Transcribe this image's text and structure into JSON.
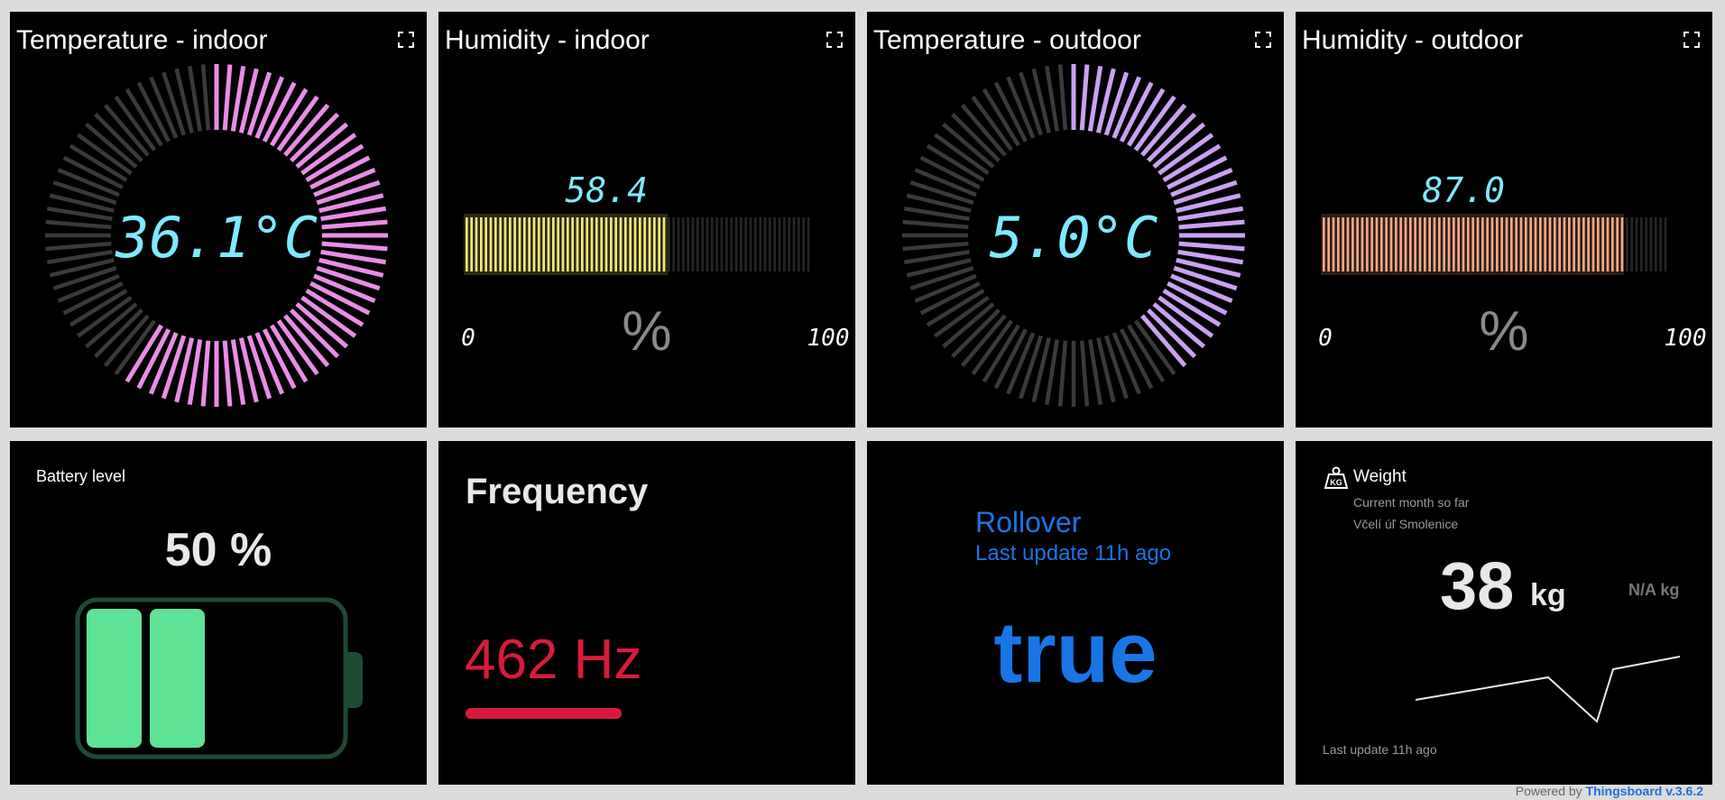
{
  "widgets": {
    "temp_indoor": {
      "title": "Temperature - indoor",
      "value": 36.1,
      "display": "36.1°C",
      "fraction": 0.6,
      "color": "#e88ee6"
    },
    "hum_indoor": {
      "title": "Humidity - indoor",
      "value": 58.4,
      "display": "58.4",
      "unit": "%",
      "min": "0",
      "max": "100",
      "color": "#f2e77a"
    },
    "temp_outdoor": {
      "title": "Temperature - outdoor",
      "value": 5.0,
      "display": "5.0°C",
      "fraction": 0.4,
      "color": "#c9a2f2"
    },
    "hum_outdoor": {
      "title": "Humidity - outdoor",
      "value": 87.0,
      "display": "87.0",
      "unit": "%",
      "min": "0",
      "max": "100",
      "color": "#f5a883"
    },
    "battery": {
      "label": "Battery level",
      "value_text": "50 %",
      "level": 0.5,
      "color": "#5ee295"
    },
    "frequency": {
      "title": "Frequency",
      "value_text": "462 Hz",
      "color": "#d81b3c"
    },
    "rollover": {
      "title": "Rollover",
      "subtitle": "Last update 11h ago",
      "value_text": "true",
      "color": "#1976e6"
    },
    "weight": {
      "title": "Weight",
      "subtitle1": "Current month so far",
      "subtitle2": "Včelí úľ Smolenice",
      "value": "38",
      "unit": "kg",
      "secondary": "N/A kg",
      "last_update": "Last update 11h ago"
    }
  },
  "footer": {
    "powered_text": "Powered by",
    "link_text": "Thingsboard v.3.6.2"
  }
}
